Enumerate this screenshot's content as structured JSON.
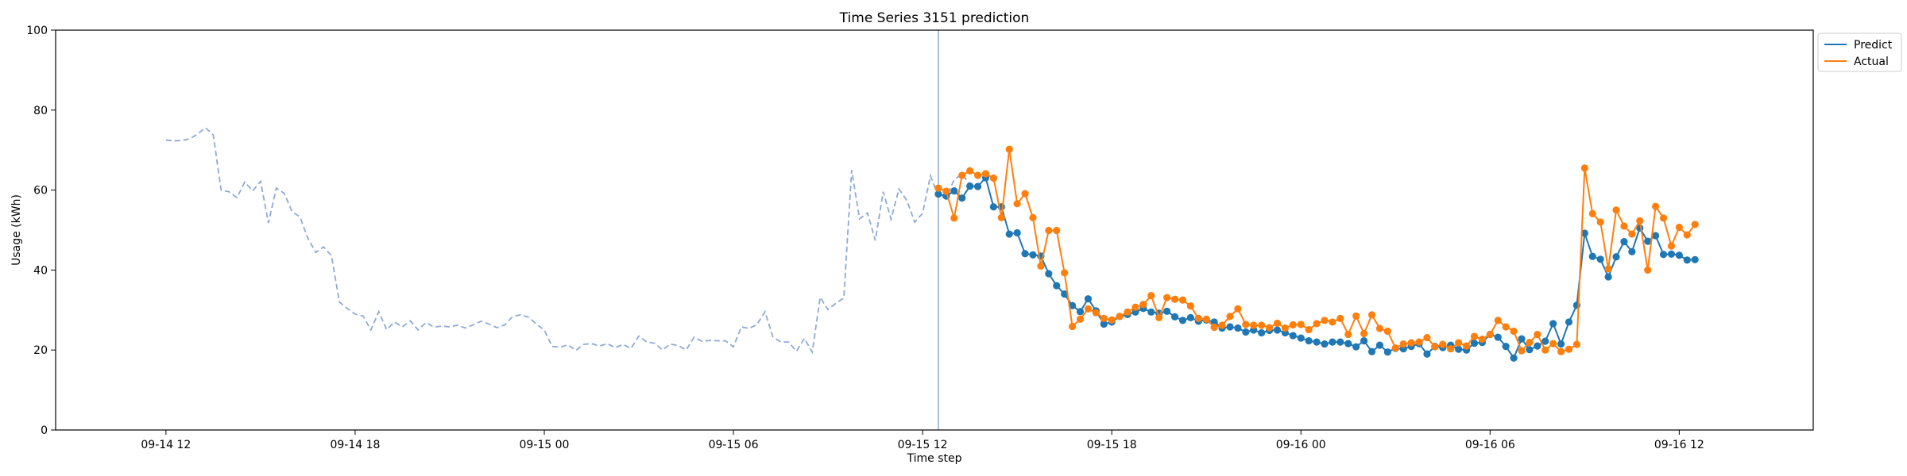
{
  "chart_data": {
    "type": "line",
    "title": "Time Series 3151 prediction",
    "xlabel": "Time step",
    "ylabel": "Usage (kWh)",
    "ylim": [
      0,
      100
    ],
    "yticks": [
      0,
      20,
      40,
      60,
      80,
      100
    ],
    "xlim_hours": [
      -3.5,
      52.25
    ],
    "xticks": [
      {
        "h": 0,
        "label": "09-14 12"
      },
      {
        "h": 6,
        "label": "09-14 18"
      },
      {
        "h": 12,
        "label": "09-15 00"
      },
      {
        "h": 18,
        "label": "09-15 06"
      },
      {
        "h": 24,
        "label": "09-15 12"
      },
      {
        "h": 30,
        "label": "09-15 18"
      },
      {
        "h": 36,
        "label": "09-16 00"
      },
      {
        "h": 42,
        "label": "09-16 06"
      },
      {
        "h": 48,
        "label": "09-16 12"
      }
    ],
    "grid": false,
    "legend_position": "outside-top-right",
    "forecast_start_hour": 24.5,
    "colors": {
      "history": "#8eaad6",
      "predict": "#1f77b4",
      "actual": "#ff7f0e",
      "divider": "#8eaad6"
    },
    "history": {
      "x_start": 0,
      "step": 0.25,
      "values": [
        72.5,
        72.3,
        72.4,
        72.8,
        74.0,
        75.6,
        73.8,
        60.0,
        59.6,
        58.1,
        62.0,
        59.8,
        62.2,
        51.8,
        60.5,
        59.2,
        54.6,
        53.3,
        48.0,
        44.4,
        45.8,
        43.6,
        32.0,
        30.4,
        29.0,
        28.5,
        25.0,
        29.6,
        25.1,
        27.0,
        25.8,
        27.3,
        25.0,
        26.9,
        25.7,
        26.0,
        25.8,
        26.2,
        25.5,
        26.3,
        27.2,
        26.5,
        25.6,
        26.3,
        28.4,
        28.8,
        28.2,
        26.5,
        25.0,
        20.9,
        20.7,
        21.3,
        19.9,
        21.4,
        21.6,
        21.0,
        21.6,
        20.6,
        21.4,
        20.4,
        23.5,
        22.0,
        21.7,
        20.0,
        21.5,
        21.1,
        20.0,
        23.2,
        22.2,
        22.4,
        22.3,
        22.3,
        20.8,
        25.8,
        25.4,
        26.4,
        29.6,
        23.3,
        22.0,
        22.0,
        19.7,
        22.9,
        19.5,
        33.2,
        30.1,
        31.7,
        33.0,
        65.0,
        52.8,
        54.3,
        47.4,
        59.6,
        52.7,
        60.3,
        57.4,
        52.0,
        54.2,
        63.6,
        58.4,
        58.2,
        62.6,
        64.0,
        61.5,
        60.2
      ]
    },
    "series": [
      {
        "name": "Predict",
        "x_start": 24.5,
        "step": 0.25,
        "values": [
          59.0,
          58.5,
          59.8,
          58.0,
          61.0,
          60.9,
          63.1,
          55.8,
          55.8,
          49.0,
          49.3,
          44.1,
          43.8,
          43.5,
          39.1,
          36.1,
          34.0,
          31.1,
          29.6,
          32.8,
          29.8,
          26.5,
          27.0,
          28.4,
          28.9,
          29.5,
          30.4,
          29.5,
          29.2,
          29.7,
          28.3,
          27.4,
          28.1,
          27.2,
          27.5,
          27.0,
          25.5,
          25.8,
          25.5,
          24.5,
          25.0,
          24.3,
          24.9,
          25.0,
          24.3,
          23.6,
          23.0,
          22.3,
          22.0,
          21.5,
          22.0,
          22.0,
          21.6,
          20.8,
          22.3,
          19.6,
          21.2,
          19.5,
          20.4,
          20.3,
          20.9,
          21.6,
          19.0,
          20.9,
          20.6,
          21.2,
          20.2,
          20.0,
          21.7,
          21.9,
          23.9,
          23.2,
          20.9,
          18.0,
          22.8,
          20.1,
          21.0,
          22.2,
          26.6,
          21.5,
          27.0,
          31.2,
          49.2,
          43.4,
          42.7,
          38.3,
          43.3,
          47.1,
          44.6,
          50.5,
          47.2,
          48.6,
          43.9,
          44.0,
          43.7,
          42.5,
          42.6
        ]
      },
      {
        "name": "Actual",
        "x_start": 24.5,
        "step": 0.25,
        "values": [
          60.5,
          59.7,
          53.0,
          63.7,
          64.8,
          63.7,
          64.1,
          63.0,
          53.1,
          70.2,
          56.6,
          59.1,
          53.1,
          41.0,
          49.9,
          49.9,
          39.3,
          25.9,
          27.7,
          30.3,
          29.3,
          27.9,
          27.5,
          28.4,
          29.5,
          30.7,
          31.4,
          33.6,
          28.1,
          33.1,
          32.7,
          32.5,
          31.0,
          27.9,
          27.7,
          25.7,
          26.2,
          28.4,
          30.3,
          26.4,
          26.2,
          26.2,
          25.6,
          26.7,
          25.5,
          26.3,
          26.4,
          25.1,
          26.6,
          27.4,
          27.0,
          27.9,
          23.9,
          28.5,
          24.1,
          28.8,
          25.4,
          24.7,
          20.5,
          21.5,
          21.8,
          22.0,
          23.1,
          20.8,
          21.4,
          20.3,
          21.8,
          21.0,
          23.4,
          22.7,
          23.9,
          27.4,
          25.8,
          24.7,
          19.8,
          21.9,
          23.9,
          20.0,
          21.6,
          19.6,
          20.2,
          21.4,
          65.5,
          54.1,
          52.0,
          40.3,
          55.0,
          51.0,
          49.0,
          52.3,
          40.0,
          55.9,
          53.0,
          46.0,
          50.7,
          48.8,
          51.4
        ]
      }
    ]
  }
}
